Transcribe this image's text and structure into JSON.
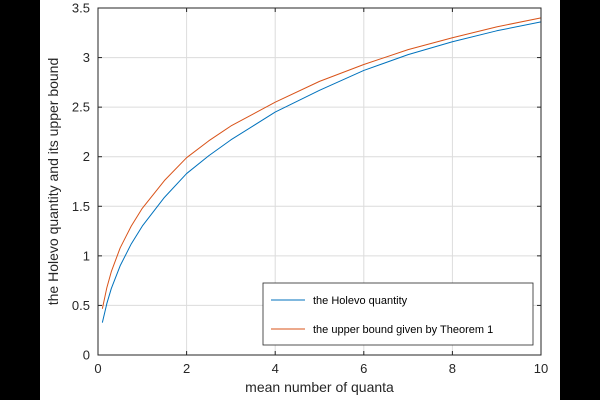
{
  "chart_data": {
    "type": "line",
    "title": "",
    "xlabel": "mean number of quanta",
    "ylabel": "the Holevo quantity and its upper bound",
    "xlim": [
      0,
      10
    ],
    "ylim": [
      0,
      3.5
    ],
    "xticks": [
      0,
      2,
      4,
      6,
      8,
      10
    ],
    "yticks": [
      0,
      0.5,
      1,
      1.5,
      2,
      2.5,
      3,
      3.5
    ],
    "xtick_labels": [
      "0",
      "2",
      "4",
      "6",
      "8",
      "10"
    ],
    "ytick_labels": [
      "0",
      "0.5",
      "1",
      "1.5",
      "2",
      "2.5",
      "3",
      "3.5"
    ],
    "grid": true,
    "legend_position": "bottom-right",
    "series": [
      {
        "name": "the Holevo quantity",
        "color": "#0072bd",
        "x": [
          0.1,
          0.2,
          0.3,
          0.5,
          0.75,
          1,
          1.5,
          2,
          2.5,
          3,
          4,
          5,
          6,
          7,
          8,
          9,
          10
        ],
        "y": [
          0.33,
          0.52,
          0.67,
          0.9,
          1.12,
          1.3,
          1.59,
          1.83,
          2.01,
          2.17,
          2.45,
          2.67,
          2.87,
          3.03,
          3.16,
          3.27,
          3.36
        ]
      },
      {
        "name": "the upper bound given by Theorem 1",
        "color": "#d95319",
        "x": [
          0.1,
          0.2,
          0.3,
          0.5,
          0.75,
          1,
          1.5,
          2,
          2.5,
          3,
          4,
          5,
          6,
          7,
          8,
          9,
          10
        ],
        "y": [
          0.47,
          0.68,
          0.84,
          1.08,
          1.3,
          1.48,
          1.76,
          1.99,
          2.16,
          2.31,
          2.55,
          2.76,
          2.93,
          3.08,
          3.2,
          3.31,
          3.4
        ]
      }
    ]
  }
}
